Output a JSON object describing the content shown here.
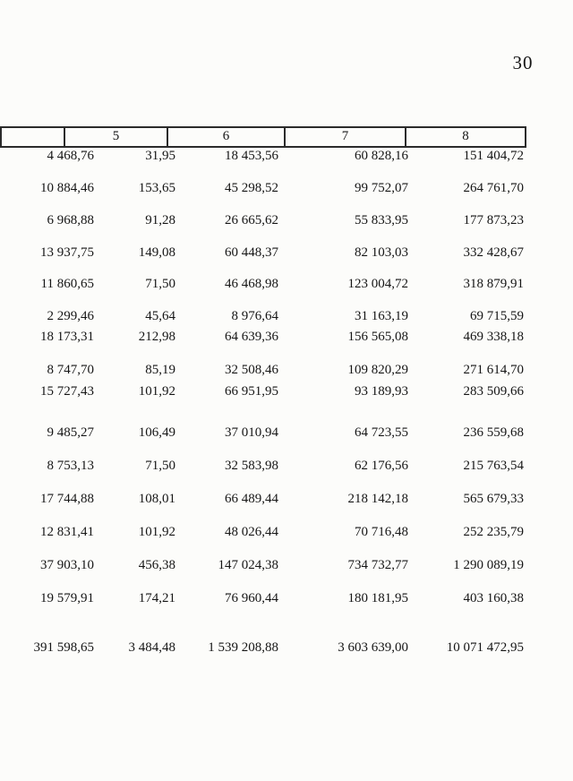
{
  "page": {
    "number": "30"
  },
  "table": {
    "headers": [
      "",
      "5",
      "6",
      "7",
      "8"
    ],
    "rows": [
      [
        "4 468,76",
        "31,95",
        "18 453,56",
        "60 828,16",
        "151 404,72"
      ],
      [
        "10 884,46",
        "153,65",
        "45 298,52",
        "99 752,07",
        "264 761,70"
      ],
      [
        "6 968,88",
        "91,28",
        "26 665,62",
        "55 833,95",
        "177 873,23"
      ],
      [
        "13 937,75",
        "149,08",
        "60 448,37",
        "82 103,03",
        "332 428,67"
      ],
      [
        "11 860,65",
        "71,50",
        "46 468,98",
        "123 004,72",
        "318 879,91"
      ],
      [
        "2 299,46",
        "45,64",
        "8 976,64",
        "31 163,19",
        "69 715,59"
      ],
      [
        "18 173,31",
        "212,98",
        "64 639,36",
        "156 565,08",
        "469 338,18"
      ],
      [
        "8 747,70",
        "85,19",
        "32 508,46",
        "109 820,29",
        "271 614,70"
      ],
      [
        "15 727,43",
        "101,92",
        "66 951,95",
        "93 189,93",
        "283 509,66"
      ],
      [
        "9 485,27",
        "106,49",
        "37 010,94",
        "64 723,55",
        "236 559,68"
      ],
      [
        "8 753,13",
        "71,50",
        "32 583,98",
        "62 176,56",
        "215 763,54"
      ],
      [
        "17 744,88",
        "108,01",
        "66 489,44",
        "218 142,18",
        "565 679,33"
      ],
      [
        "12 831,41",
        "101,92",
        "48 026,44",
        "70 716,48",
        "252 235,79"
      ],
      [
        "37 903,10",
        "456,38",
        "147 024,38",
        "734 732,77",
        "1 290 089,19"
      ],
      [
        "19 579,91",
        "174,21",
        "76 960,44",
        "180 181,95",
        "403 160,38"
      ]
    ],
    "totals": [
      "391 598,65",
      "3 484,48",
      "1 539 208,88",
      "3 603 639,00",
      "10 071 472,95"
    ]
  }
}
